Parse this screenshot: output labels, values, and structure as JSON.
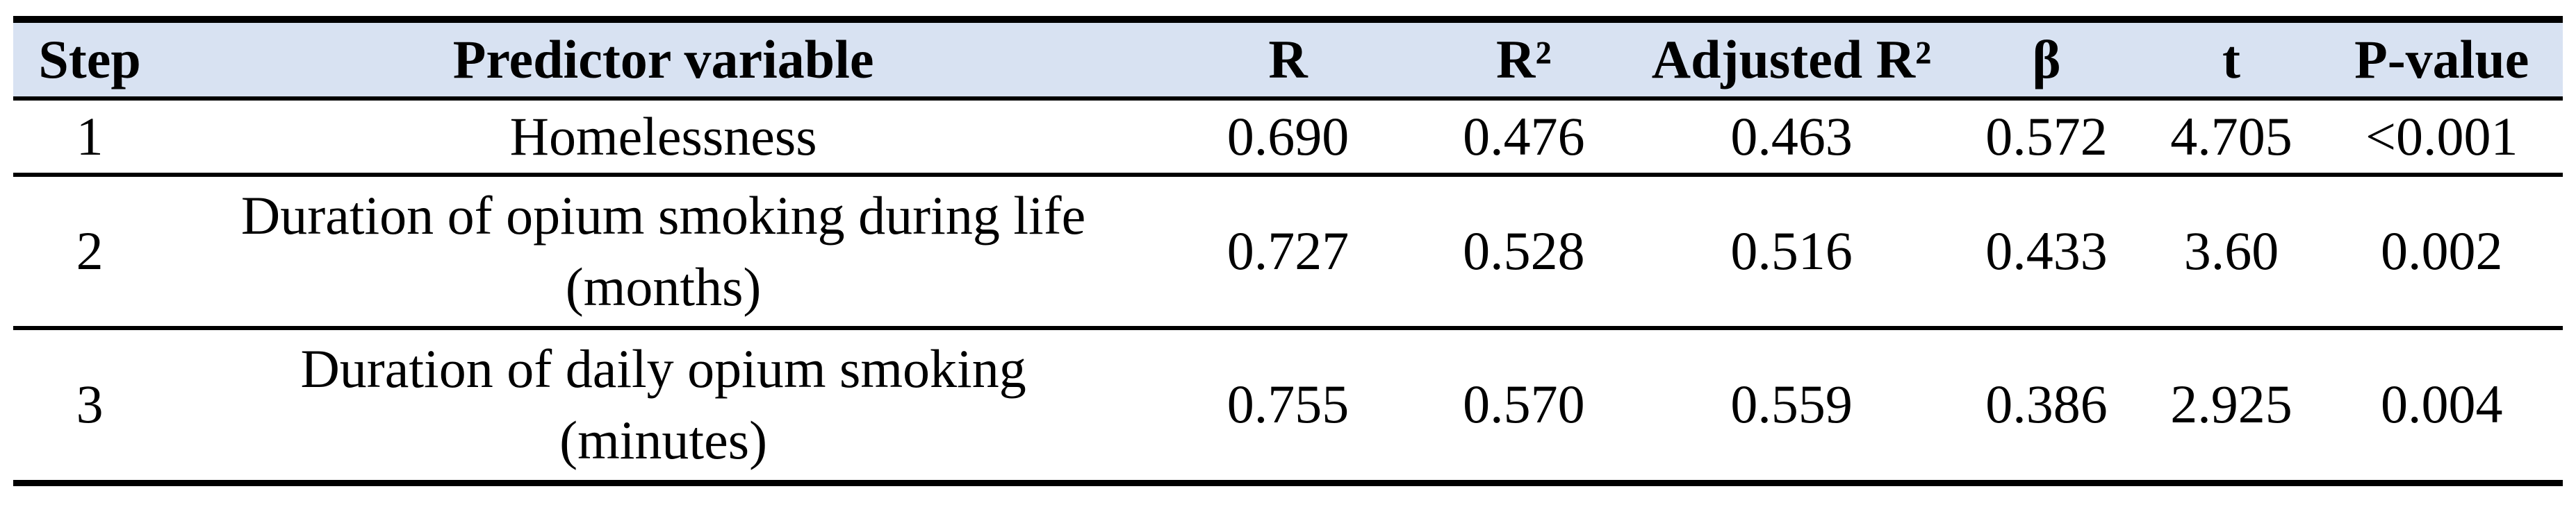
{
  "table": {
    "header_bg": "#D8E2F2",
    "rule_color": "#000000",
    "headers": [
      "Step",
      "Predictor variable",
      "R",
      "R²",
      "Adjusted R²",
      "β",
      "t",
      "P-value"
    ],
    "rows": [
      {
        "step": "1",
        "predictor": "Homelessness",
        "r": "0.690",
        "r2": "0.476",
        "adj_r2": "0.463",
        "beta": "0.572",
        "t": "4.705",
        "p": "<0.001"
      },
      {
        "step": "2",
        "predictor": "Duration of opium smoking during life\n(months)",
        "r": "0.727",
        "r2": "0.528",
        "adj_r2": "0.516",
        "beta": "0.433",
        "t": "3.60",
        "p": "0.002"
      },
      {
        "step": "3",
        "predictor": "Duration of daily opium smoking\n(minutes)",
        "r": "0.755",
        "r2": "0.570",
        "adj_r2": "0.559",
        "beta": "0.386",
        "t": "2.925",
        "p": "0.004"
      }
    ]
  }
}
